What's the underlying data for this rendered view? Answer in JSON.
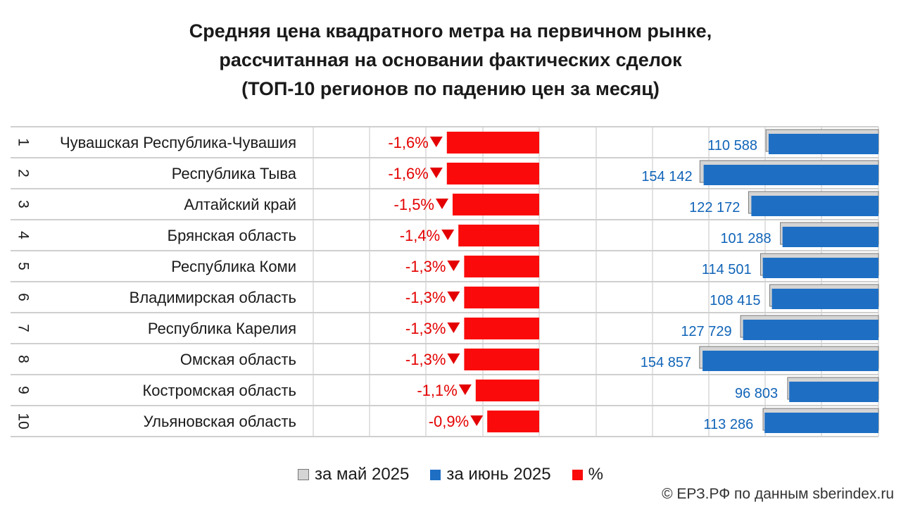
{
  "title_lines": [
    "Средняя цена квадратного метра на первичном рынке,",
    "рассчитанная на основании фактических сделок",
    "(ТОП-10 регионов по падению цен за месяц)"
  ],
  "legend": {
    "may": "за май 2025",
    "june": "за июнь 2025",
    "pct": "%"
  },
  "source": "© ЕРЗ.РФ по данным sberindex.ru",
  "colors": {
    "june": "#1e6fc4",
    "may": "#d4d4d4",
    "pct": "#fa0a0a",
    "label_june": "#1064b8",
    "label_pct": "#e40000"
  },
  "chart_data": {
    "type": "bar",
    "orientation": "horizontal",
    "ranks": [
      "1",
      "2",
      "3",
      "4",
      "5",
      "6",
      "7",
      "8",
      "9",
      "10"
    ],
    "categories": [
      "Чувашская Республика-Чувашия",
      "Республика Тыва",
      "Алтайский край",
      "Брянская область",
      "Республика Коми",
      "Владимирская область",
      "Республика Карелия",
      "Омская область",
      "Костромская область",
      "Ульяновская область"
    ],
    "pct_change": [
      -1.6,
      -1.6,
      -1.5,
      -1.4,
      -1.3,
      -1.3,
      -1.3,
      -1.3,
      -1.1,
      -0.9
    ],
    "pct_labels": [
      "-1,6%",
      "-1,6%",
      "-1,5%",
      "-1,4%",
      "-1,3%",
      "-1,3%",
      "-1,3%",
      "-1,3%",
      "-1,1%",
      "-0,9%"
    ],
    "price_may": [
      112382,
      156648,
      124032,
      102724,
      116009,
      109840,
      129408,
      156892,
      97879,
      114315
    ],
    "price_june": [
      110588,
      154142,
      122172,
      101288,
      114501,
      108415,
      127729,
      154857,
      96803,
      113286
    ],
    "price_june_labels": [
      "110 588",
      "154 142",
      "122 172",
      "101 288",
      "114 501",
      "108 415",
      "127 729",
      "154 857",
      "96 803",
      "113 286"
    ],
    "grid": true
  }
}
